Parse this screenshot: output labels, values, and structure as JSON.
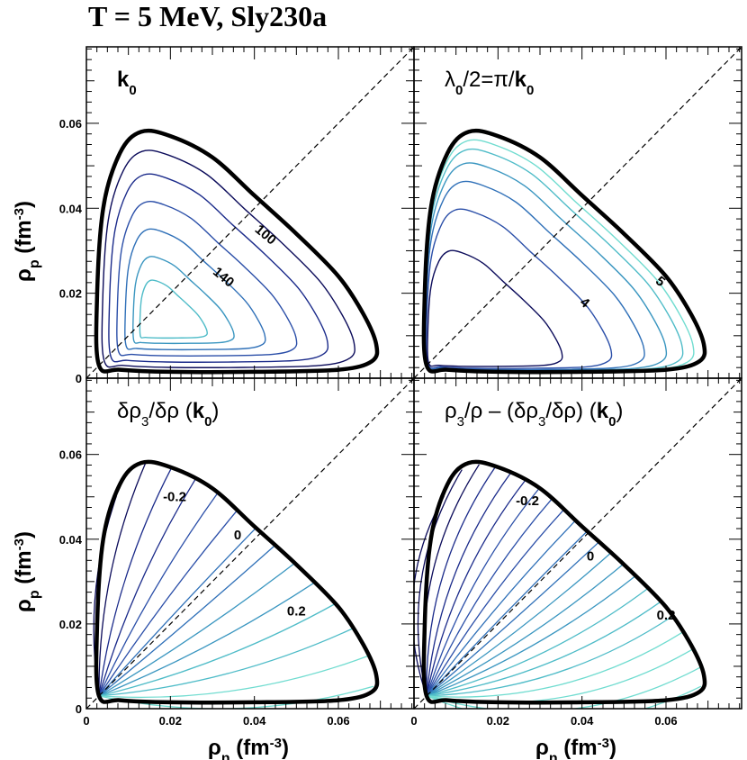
{
  "title": "T = 5 MeV, Sly230a",
  "chart_data": {
    "type": "contour",
    "title": "T = 5 MeV, Sly230a",
    "x_range": [
      0,
      0.078
    ],
    "y_range": [
      0,
      0.078
    ],
    "spinodal_boundary": [
      [
        0.003,
        0.003
      ],
      [
        0.0025,
        0.018
      ],
      [
        0.004,
        0.04
      ],
      [
        0.008,
        0.053
      ],
      [
        0.013,
        0.058
      ],
      [
        0.02,
        0.057
      ],
      [
        0.03,
        0.052
      ],
      [
        0.04,
        0.043
      ],
      [
        0.05,
        0.034
      ],
      [
        0.06,
        0.024
      ],
      [
        0.066,
        0.015
      ],
      [
        0.069,
        0.008
      ],
      [
        0.068,
        0.004
      ],
      [
        0.06,
        0.002
      ],
      [
        0.04,
        0.0015
      ],
      [
        0.02,
        0.0015
      ],
      [
        0.008,
        0.002
      ],
      [
        0.003,
        0.003
      ]
    ],
    "diagonal": [
      [
        0,
        0
      ],
      [
        0.078,
        0.078
      ]
    ],
    "x_axis": {
      "label_symbol": "ρ",
      "label_sub": "n",
      "label_unit": "(fm",
      "label_exp": "-3",
      "label_close": ")",
      "ticks": [
        "0",
        "0.02",
        "0.04",
        "0.06"
      ],
      "tick_values": [
        0,
        0.02,
        0.04,
        0.06
      ]
    },
    "y_axis": {
      "label_symbol": "ρ",
      "label_sub": "p",
      "label_unit": "(fm",
      "label_exp": "-3",
      "label_close": ")",
      "ticks": [
        "0",
        "0.02",
        "0.04",
        "0.06"
      ],
      "tick_values": [
        0,
        0.02,
        0.04,
        0.06
      ]
    },
    "panels": [
      {
        "id": "k0",
        "label_parts": [
          {
            "t": "k",
            "b": true
          },
          {
            "t": "0",
            "sub": true,
            "b": true
          }
        ],
        "contour_labels": [
          {
            "text": "100",
            "at": [
              0.042,
              0.033
            ],
            "rot": 40
          },
          {
            "text": "140",
            "at": [
              0.032,
              0.023
            ],
            "rot": 40
          }
        ]
      },
      {
        "id": "lambda",
        "label_parts": [
          {
            "t": "λ"
          },
          {
            "t": "0",
            "sub": true,
            "b": true
          },
          {
            "t": "/2=π/"
          },
          {
            "t": "k",
            "b": true
          },
          {
            "t": "0",
            "sub": true,
            "b": true
          }
        ],
        "contour_labels": [
          {
            "text": "5",
            "at": [
              0.058,
              0.022
            ],
            "rot": 40
          },
          {
            "text": "4",
            "at": [
              0.04,
              0.017
            ],
            "rot": 40
          }
        ]
      },
      {
        "id": "drho3",
        "label_parts": [
          {
            "t": "δρ"
          },
          {
            "t": "3",
            "sub": true
          },
          {
            "t": "/δρ  ("
          },
          {
            "t": "k",
            "b": true
          },
          {
            "t": "0",
            "sub": true,
            "b": true
          },
          {
            "t": ")"
          }
        ],
        "contour_labels": [
          {
            "text": "-0.2",
            "at": [
              0.021,
              0.049
            ],
            "rot": 0
          },
          {
            "text": "0",
            "at": [
              0.036,
              0.04
            ],
            "rot": 0
          },
          {
            "text": "0.2",
            "at": [
              0.05,
              0.022
            ],
            "rot": 0
          }
        ]
      },
      {
        "id": "rho3",
        "label_parts": [
          {
            "t": "ρ"
          },
          {
            "t": "3",
            "sub": true
          },
          {
            "t": "/ρ – (δρ"
          },
          {
            "t": "3",
            "sub": true
          },
          {
            "t": "/δρ)  ("
          },
          {
            "t": "k",
            "b": true
          },
          {
            "t": "0",
            "sub": true,
            "b": true
          },
          {
            "t": ")"
          }
        ],
        "contour_labels": [
          {
            "text": "-0.2",
            "at": [
              0.027,
              0.048
            ],
            "rot": 0
          },
          {
            "text": "0",
            "at": [
              0.042,
              0.035
            ],
            "rot": 0
          },
          {
            "text": "0.2",
            "at": [
              0.06,
              0.021
            ],
            "rot": 0
          }
        ]
      }
    ]
  }
}
